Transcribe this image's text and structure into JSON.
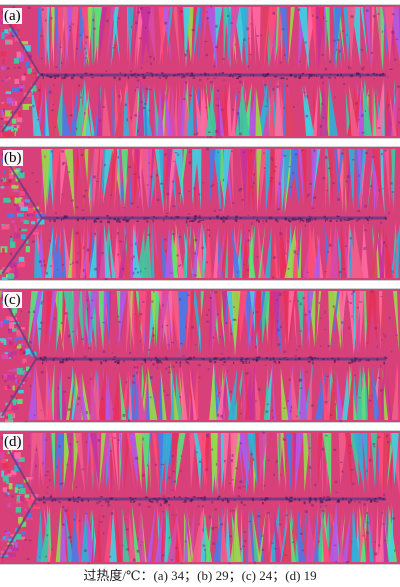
{
  "panels": [
    {
      "label": "(a)"
    },
    {
      "label": "(b)"
    },
    {
      "label": "(c)"
    },
    {
      "label": "(d)"
    }
  ],
  "caption": "过热度/℃：(a) 34；(b) 29；(c) 24；(d) 19",
  "colors": {
    "grain_palette": [
      "#e8305a",
      "#d84aa8",
      "#3fd0e0",
      "#2fb0d8",
      "#9ad84a",
      "#5ae27a",
      "#f25c8a",
      "#c8329a",
      "#4a7ae8",
      "#ff6aa0",
      "#b05ae8",
      "#e04060",
      "#40c8a0",
      "#ff4a78"
    ],
    "boundary": "#7a2a78",
    "centerline": "#6a3a82"
  }
}
